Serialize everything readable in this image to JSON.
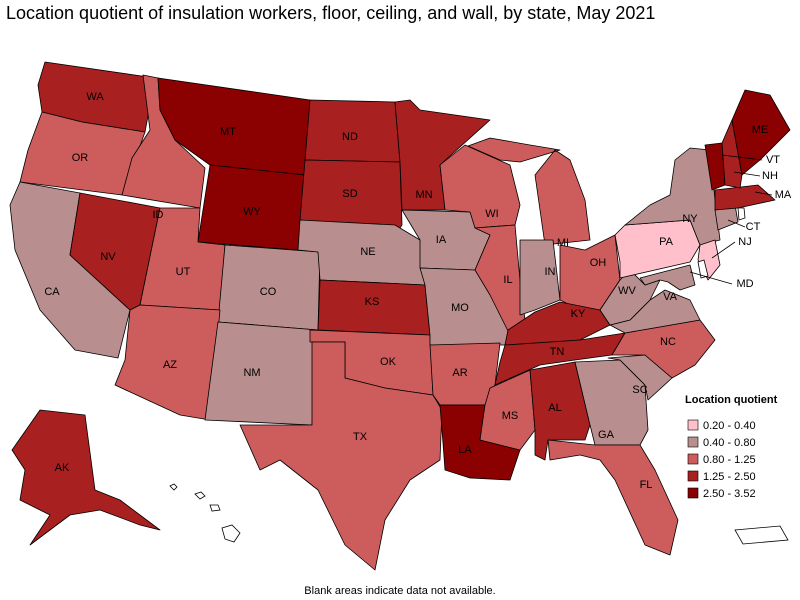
{
  "title": "Location quotient of insulation workers, floor, ceiling, and wall, by state, May 2021",
  "legend": {
    "title": "Location quotient",
    "items": [
      {
        "label": "0.20 - 0.40",
        "color": "#ffc0cb"
      },
      {
        "label": "0.40 - 0.80",
        "color": "#b88e8e"
      },
      {
        "label": "0.80 - 1.25",
        "color": "#cd5c5c"
      },
      {
        "label": "1.25 - 2.50",
        "color": "#a8201f"
      },
      {
        "label": "2.50 - 3.52",
        "color": "#8b0000"
      }
    ]
  },
  "states": [
    {
      "label": "WA",
      "color": "#a8201f"
    },
    {
      "label": "OR",
      "color": "#cd5c5c"
    },
    {
      "label": "CA",
      "color": "#b88e8e"
    },
    {
      "label": "NV",
      "color": "#a8201f"
    },
    {
      "label": "ID",
      "color": "#cd5c5c"
    },
    {
      "label": "MT",
      "color": "#8b0000"
    },
    {
      "label": "WY",
      "color": "#8b0000"
    },
    {
      "label": "UT",
      "color": "#cd5c5c"
    },
    {
      "label": "CO",
      "color": "#b88e8e"
    },
    {
      "label": "AZ",
      "color": "#cd5c5c"
    },
    {
      "label": "NM",
      "color": "#b88e8e"
    },
    {
      "label": "ND",
      "color": "#a8201f"
    },
    {
      "label": "SD",
      "color": "#a8201f"
    },
    {
      "label": "NE",
      "color": "#b88e8e"
    },
    {
      "label": "KS",
      "color": "#a8201f"
    },
    {
      "label": "OK",
      "color": "#cd5c5c"
    },
    {
      "label": "TX",
      "color": "#cd5c5c"
    },
    {
      "label": "MN",
      "color": "#a8201f"
    },
    {
      "label": "IA",
      "color": "#b88e8e"
    },
    {
      "label": "MO",
      "color": "#b88e8e"
    },
    {
      "label": "AR",
      "color": "#cd5c5c"
    },
    {
      "label": "LA",
      "color": "#8b0000"
    },
    {
      "label": "WI",
      "color": "#cd5c5c"
    },
    {
      "label": "IL",
      "color": "#cd5c5c"
    },
    {
      "label": "MI",
      "color": "#cd5c5c"
    },
    {
      "label": "IN",
      "color": "#b88e8e"
    },
    {
      "label": "OH",
      "color": "#cd5c5c"
    },
    {
      "label": "KY",
      "color": "#a8201f"
    },
    {
      "label": "TN",
      "color": "#a8201f"
    },
    {
      "label": "MS",
      "color": "#cd5c5c"
    },
    {
      "label": "AL",
      "color": "#a8201f"
    },
    {
      "label": "GA",
      "color": "#b88e8e"
    },
    {
      "label": "FL",
      "color": "#cd5c5c"
    },
    {
      "label": "SC",
      "color": "#b88e8e"
    },
    {
      "label": "NC",
      "color": "#cd5c5c"
    },
    {
      "label": "VA",
      "color": "#b88e8e"
    },
    {
      "label": "WV",
      "color": "#b88e8e"
    },
    {
      "label": "MD",
      "color": "#b88e8e"
    },
    {
      "label": "PA",
      "color": "#ffc0cb"
    },
    {
      "label": "NY",
      "color": "#b88e8e"
    },
    {
      "label": "NJ",
      "color": "#ffc0cb"
    },
    {
      "label": "CT",
      "color": "#b88e8e"
    },
    {
      "label": "MA",
      "color": "#a8201f"
    },
    {
      "label": "VT",
      "color": "#8b0000"
    },
    {
      "label": "NH",
      "color": "#a8201f"
    },
    {
      "label": "ME",
      "color": "#8b0000"
    },
    {
      "label": "AK",
      "color": "#a8201f"
    }
  ],
  "footnote": "Blank areas indicate data not available."
}
